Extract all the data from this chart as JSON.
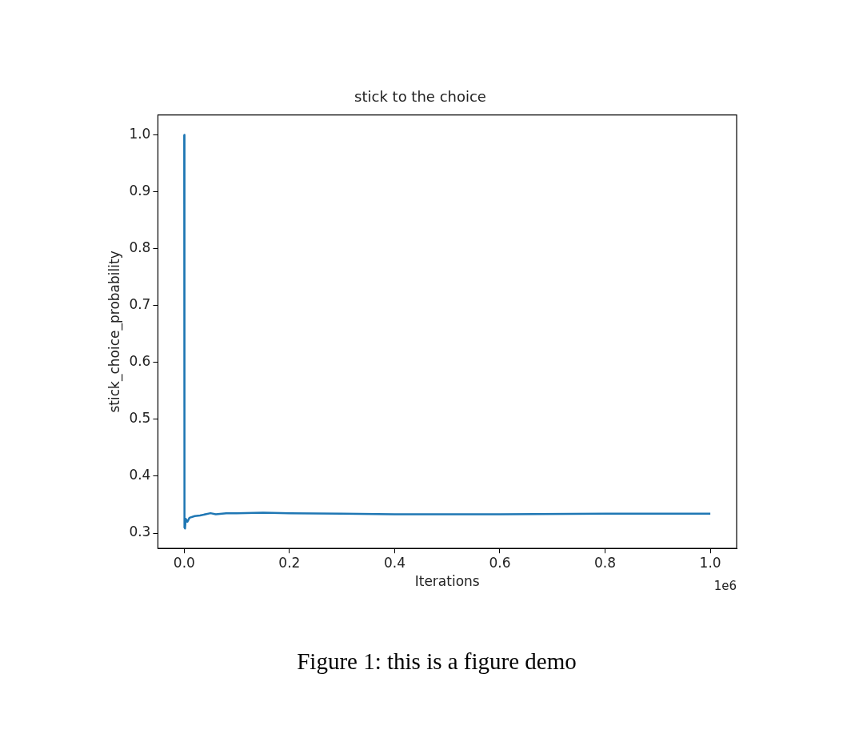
{
  "chart_data": {
    "type": "line",
    "title": "stick to the choice",
    "xlabel": "Iterations",
    "ylabel": "stick_choice_probability",
    "annotations": [
      "1e6",
      "Figure 1: this is a figure demo"
    ],
    "x": [
      1e-06,
      0.0005,
      0.0015,
      0.003,
      0.006,
      0.01,
      0.02,
      0.03,
      0.05,
      0.06,
      0.08,
      0.1,
      0.15,
      0.2,
      0.3,
      0.4,
      0.5,
      0.6,
      0.8,
      1.0
    ],
    "series": [
      {
        "color": "#1f77b4",
        "values": [
          1.0,
          0.31,
          0.308,
          0.325,
          0.32,
          0.327,
          0.33,
          0.331,
          0.335,
          0.333,
          0.335,
          0.335,
          0.336,
          0.335,
          0.334,
          0.333,
          0.333,
          0.333,
          0.334,
          0.334
        ]
      }
    ],
    "xlim": [
      -0.05,
      1.05
    ],
    "ylim": [
      0.273,
      1.035
    ],
    "xticks": [
      {
        "value": 0,
        "label": "0.0"
      },
      0.2,
      0.4,
      0.6,
      0.8,
      {
        "value": 1,
        "label": "1.0"
      }
    ],
    "yticks": [
      0.3,
      0.4,
      0.5,
      0.6,
      0.7,
      0.8,
      0.9,
      {
        "value": 1,
        "label": "1.0"
      }
    ],
    "grid": false,
    "legend": false,
    "marker": "none",
    "line_style": "solid"
  }
}
